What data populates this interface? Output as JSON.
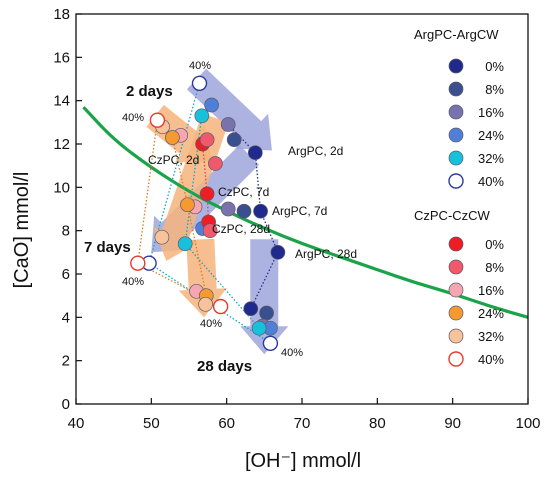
{
  "chart_data": {
    "type": "scatter",
    "xlabel": "[OH⁻] mmol/l",
    "ylabel": "[CaO] mmol/l",
    "xlim": [
      40,
      100
    ],
    "ylim": [
      0,
      18
    ],
    "xticks": [
      40,
      50,
      60,
      70,
      80,
      90,
      100
    ],
    "yticks": [
      0,
      2,
      4,
      6,
      8,
      10,
      12,
      14,
      16,
      18
    ],
    "grid": false,
    "legend_position": "right",
    "colors": {
      "fit_curve": "#1ba34a",
      "argpc_trace": "#1f2f8a",
      "czpc_trace": "#e07a20",
      "low_cw_trace": "#14a4c4",
      "arg_arrow": "#9fa6dc",
      "cz_arrow": "#f6b47c"
    },
    "legend": {
      "arg_title": "ArgPC-ArgCW",
      "cz_title": "CzPC-CzCW",
      "arg_entries": [
        {
          "label": "0%",
          "color": "#1f2a8c"
        },
        {
          "label": "8%",
          "color": "#3a4f8e"
        },
        {
          "label": "16%",
          "color": "#7a72ad"
        },
        {
          "label": "24%",
          "color": "#4f7fd6"
        },
        {
          "label": "32%",
          "color": "#17c1d9"
        },
        {
          "label": "40%",
          "color": "#ffffff"
        }
      ],
      "cz_entries": [
        {
          "label": "0%",
          "color": "#ee1c25"
        },
        {
          "label": "8%",
          "color": "#f0596b"
        },
        {
          "label": "16%",
          "color": "#f5a6b0"
        },
        {
          "label": "24%",
          "color": "#f59a2e"
        },
        {
          "label": "32%",
          "color": "#f8c39a"
        },
        {
          "label": "40%",
          "color": "#ffffff"
        }
      ]
    },
    "annotations": {
      "day_2": "2 days",
      "day_7": "7 days",
      "day_28": "28 days",
      "argpc_2d": "ArgPC, 2d",
      "argpc_7d": "ArgPC, 7d",
      "argpc_28d": "ArgPC, 28d",
      "czpc_2d": "CzPC, 2d",
      "czpc_7d": "CzPC, 7d",
      "czpc_28d": "CzPC, 28d",
      "pct_40": "40%"
    },
    "fit_curve": {
      "points": [
        [
          41,
          13.7
        ],
        [
          45,
          12.2
        ],
        [
          50,
          10.9
        ],
        [
          55,
          9.8
        ],
        [
          60,
          8.9
        ],
        [
          65,
          8.1
        ],
        [
          70,
          7.4
        ],
        [
          75,
          6.8
        ],
        [
          80,
          6.2
        ],
        [
          85,
          5.6
        ],
        [
          90,
          5.1
        ],
        [
          95,
          4.5
        ],
        [
          100,
          4.0
        ]
      ]
    },
    "arrows": [
      {
        "group": "arg",
        "from": [
          56,
          15.0
        ],
        "to": [
          66,
          11.7
        ]
      },
      {
        "group": "arg",
        "from": [
          63,
          11.5
        ],
        "to": [
          50,
          7.0
        ]
      },
      {
        "group": "arg",
        "from": [
          65,
          7.6
        ],
        "to": [
          65,
          2.3
        ]
      },
      {
        "group": "cz",
        "from": [
          50.5,
          13.3
        ],
        "to": [
          58,
          11.2
        ]
      },
      {
        "group": "cz",
        "from": [
          58.5,
          13.2
        ],
        "to": [
          52,
          6.6
        ]
      },
      {
        "group": "cz",
        "from": [
          56.5,
          7.6
        ],
        "to": [
          57,
          4.0
        ]
      }
    ],
    "series": [
      {
        "name": "ArgPC-ArgCW 0%",
        "group": "arg",
        "color": "#1f2a8c",
        "points": [
          [
            63.8,
            11.6
          ],
          [
            64.5,
            8.9
          ],
          [
            66.8,
            7.0
          ],
          [
            63.2,
            4.4
          ]
        ]
      },
      {
        "name": "ArgPC-ArgCW 8%",
        "group": "arg",
        "color": "#3a4f8e",
        "points": [
          [
            61.0,
            12.2
          ],
          [
            62.3,
            8.9
          ],
          [
            65.3,
            4.2
          ]
        ]
      },
      {
        "name": "ArgPC-ArgCW 16%",
        "group": "arg",
        "color": "#7a72ad",
        "points": [
          [
            60.2,
            12.9
          ],
          [
            60.2,
            9.0
          ],
          [
            64.8,
            3.6
          ]
        ]
      },
      {
        "name": "ArgPC-ArgCW 24%",
        "group": "arg",
        "color": "#4f7fd6",
        "points": [
          [
            58.0,
            13.8
          ],
          [
            56.8,
            8.1
          ],
          [
            65.8,
            3.5
          ]
        ]
      },
      {
        "name": "ArgPC-ArgCW 32%",
        "group": "arg",
        "color": "#17c1d9",
        "points": [
          [
            56.7,
            13.3
          ],
          [
            54.5,
            7.4
          ],
          [
            64.3,
            3.5
          ]
        ]
      },
      {
        "name": "ArgPC-ArgCW 40%",
        "group": "arg",
        "color": "#ffffff",
        "points": [
          [
            56.4,
            14.8
          ],
          [
            49.7,
            6.5
          ],
          [
            65.8,
            2.8
          ]
        ]
      },
      {
        "name": "CzPC-CzCW 0%",
        "group": "cz",
        "color": "#ee1c25",
        "points": [
          [
            56.8,
            12.0
          ],
          [
            57.4,
            9.7
          ],
          [
            57.6,
            8.4
          ]
        ]
      },
      {
        "name": "CzPC-CzCW 8%",
        "group": "cz",
        "color": "#f0596b",
        "points": [
          [
            57.4,
            12.2
          ],
          [
            58.5,
            11.1
          ],
          [
            57.8,
            8.0
          ]
        ]
      },
      {
        "name": "CzPC-CzCW 16%",
        "group": "cz",
        "color": "#f5a6b0",
        "points": [
          [
            53.9,
            12.4
          ],
          [
            55.8,
            9.1
          ],
          [
            56.0,
            5.2
          ]
        ]
      },
      {
        "name": "CzPC-CzCW 24%",
        "group": "cz",
        "color": "#f59a2e",
        "points": [
          [
            52.8,
            12.3
          ],
          [
            54.8,
            9.2
          ],
          [
            57.3,
            5.0
          ]
        ]
      },
      {
        "name": "CzPC-CzCW 32%",
        "group": "cz",
        "color": "#f8c39a",
        "points": [
          [
            51.5,
            12.8
          ],
          [
            51.4,
            7.7
          ],
          [
            57.2,
            4.6
          ]
        ]
      },
      {
        "name": "CzPC-CzCW 40%",
        "group": "cz",
        "color": "#ffffff",
        "points": [
          [
            50.8,
            13.1
          ],
          [
            48.2,
            6.5
          ],
          [
            59.2,
            4.5
          ]
        ]
      }
    ],
    "traces": [
      {
        "group": "arg",
        "color": "#1f2f8a",
        "points": [
          [
            63.8,
            11.6
          ],
          [
            64.5,
            8.9
          ],
          [
            66.8,
            7.0
          ],
          [
            63.2,
            4.4
          ]
        ]
      },
      {
        "group": "arg",
        "color": "#1f2f8a",
        "points": [
          [
            60.2,
            12.9
          ],
          [
            63.8,
            11.6
          ]
        ]
      },
      {
        "group": "arg",
        "color": "#14a4c4",
        "points": [
          [
            56.4,
            14.8
          ],
          [
            49.7,
            6.5
          ],
          [
            65.8,
            2.8
          ]
        ]
      },
      {
        "group": "arg",
        "color": "#14a4c4",
        "points": [
          [
            56.7,
            13.3
          ],
          [
            54.5,
            7.4
          ],
          [
            64.3,
            3.5
          ]
        ]
      },
      {
        "group": "cz",
        "color": "#e07a20",
        "points": [
          [
            50.8,
            13.1
          ],
          [
            48.2,
            6.5
          ],
          [
            59.2,
            4.5
          ]
        ]
      },
      {
        "group": "cz",
        "color": "#e07a20",
        "points": [
          [
            52.8,
            12.3
          ],
          [
            54.8,
            9.2
          ],
          [
            57.3,
            5.0
          ]
        ]
      },
      {
        "group": "cz",
        "color": "#e04050",
        "points": [
          [
            56.8,
            12.0
          ],
          [
            57.4,
            9.7
          ],
          [
            57.6,
            8.4
          ]
        ]
      }
    ]
  }
}
